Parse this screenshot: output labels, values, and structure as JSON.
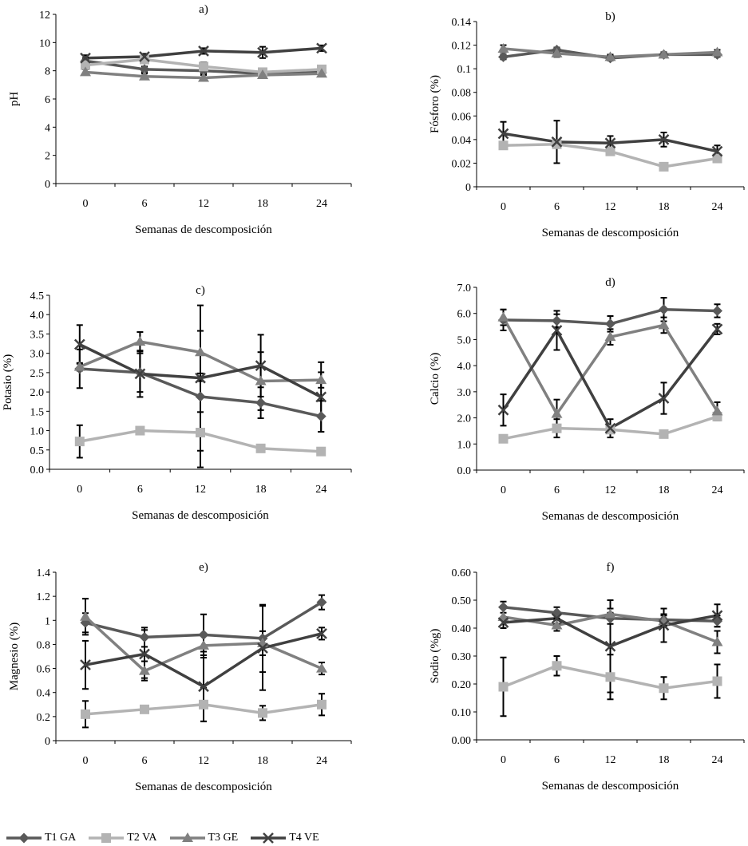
{
  "colors": {
    "T1": "#595959",
    "T2": "#b3b3b3",
    "T3": "#808080",
    "T4": "#404040",
    "axis": "#000000",
    "errorbar": "#000000"
  },
  "legend": [
    {
      "key": "T1",
      "label": "T1 GA",
      "marker": "diamond"
    },
    {
      "key": "T2",
      "label": "T2 VA",
      "marker": "square"
    },
    {
      "key": "T3",
      "label": "T3 GE",
      "marker": "triangle"
    },
    {
      "key": "T4",
      "label": "T4 VE",
      "marker": "x"
    }
  ],
  "chart_data": [
    {
      "id": "a",
      "type": "line",
      "title": "a)",
      "xlabel": "Semanas de descomposición",
      "ylabel": "pH",
      "categories": [
        "0",
        "6",
        "12",
        "18",
        "24"
      ],
      "ylim": [
        0,
        12
      ],
      "yticks": [
        "0",
        "2",
        "4",
        "6",
        "8",
        "10",
        "12"
      ],
      "series": [
        {
          "key": "T1",
          "name": "T1 GA",
          "values": [
            8.7,
            8.1,
            8.0,
            7.8,
            7.9
          ],
          "errors": [
            0.2,
            0.2,
            0.2,
            0.2,
            0.2
          ]
        },
        {
          "key": "T2",
          "name": "T2 VA",
          "values": [
            8.4,
            8.8,
            8.3,
            7.9,
            8.1
          ],
          "errors": [
            0.2,
            0.2,
            0.3,
            0.2,
            0.2
          ]
        },
        {
          "key": "T3",
          "name": "T3 GE",
          "values": [
            7.9,
            7.6,
            7.5,
            7.7,
            7.8
          ],
          "errors": [
            0.2,
            0.2,
            0.2,
            0.2,
            0.2
          ]
        },
        {
          "key": "T4",
          "name": "T4 VE",
          "values": [
            8.9,
            9.0,
            9.4,
            9.3,
            9.6
          ],
          "errors": [
            0.2,
            0.2,
            0.2,
            0.4,
            0.2
          ]
        }
      ]
    },
    {
      "id": "b",
      "type": "line",
      "title": "b)",
      "xlabel": "Semanas de descomposición",
      "ylabel": "Fósforo (%)",
      "categories": [
        "0",
        "6",
        "12",
        "18",
        "24"
      ],
      "ylim": [
        0,
        0.14
      ],
      "yticks": [
        "0",
        "0.02",
        "0.04",
        "0.06",
        "0.08",
        "0.1",
        "0.12",
        "0.14"
      ],
      "series": [
        {
          "key": "T1",
          "name": "T1 GA",
          "values": [
            0.11,
            0.116,
            0.109,
            0.112,
            0.112
          ],
          "errors": [
            0.002,
            0.002,
            0.002,
            0.002,
            0.002
          ]
        },
        {
          "key": "T2",
          "name": "T2 VA",
          "values": [
            0.035,
            0.036,
            0.03,
            0.017,
            0.024
          ],
          "errors": [
            0.002,
            0.002,
            0.003,
            0.002,
            0.002
          ]
        },
        {
          "key": "T3",
          "name": "T3 GE",
          "values": [
            0.117,
            0.113,
            0.11,
            0.112,
            0.114
          ],
          "errors": [
            0.003,
            0.003,
            0.002,
            0.002,
            0.002
          ]
        },
        {
          "key": "T4",
          "name": "T4 VE",
          "values": [
            0.045,
            0.038,
            0.037,
            0.04,
            0.03
          ],
          "errors": [
            0.01,
            0.018,
            0.006,
            0.006,
            0.005
          ]
        }
      ]
    },
    {
      "id": "c",
      "type": "line",
      "title": "c)",
      "xlabel": "Semanas de descomposición",
      "ylabel": "Potasio (%)",
      "categories": [
        "0",
        "6",
        "12",
        "18",
        "24"
      ],
      "ylim": [
        0,
        4.5
      ],
      "yticks": [
        "0.0",
        "0.5",
        "1.0",
        "1.5",
        "2.0",
        "2.5",
        "3.0",
        "3.5",
        "4.0",
        "4.5"
      ],
      "series": [
        {
          "key": "T1",
          "name": "T1 GA",
          "values": [
            2.6,
            2.5,
            1.88,
            1.72,
            1.37
          ],
          "errors": [
            0.5,
            0.5,
            0.4,
            0.4,
            0.4
          ]
        },
        {
          "key": "T2",
          "name": "T2 VA",
          "values": [
            0.72,
            1.0,
            0.95,
            0.54,
            0.46
          ],
          "errors": [
            0.42,
            0.05,
            0.9,
            0.05,
            0.05
          ]
        },
        {
          "key": "T3",
          "name": "T3 GE",
          "values": [
            2.65,
            3.3,
            3.03,
            2.28,
            2.31
          ],
          "errors": [
            0.1,
            0.25,
            0.55,
            0.75,
            0.2
          ]
        },
        {
          "key": "T4",
          "name": "T4 VE",
          "values": [
            3.23,
            2.47,
            2.36,
            2.68,
            1.87
          ],
          "errors": [
            0.5,
            0.6,
            1.88,
            0.8,
            0.9
          ]
        }
      ]
    },
    {
      "id": "d",
      "type": "line",
      "title": "d)",
      "xlabel": "Semanas de descomposición",
      "ylabel": "Calcio (%)",
      "categories": [
        "0",
        "6",
        "12",
        "18",
        "24"
      ],
      "ylim": [
        0,
        7
      ],
      "yticks": [
        "0.0",
        "1.0",
        "2.0",
        "3.0",
        "4.0",
        "5.0",
        "6.0",
        "7.0"
      ],
      "series": [
        {
          "key": "T1",
          "name": "T1 GA",
          "values": [
            5.75,
            5.72,
            5.6,
            6.15,
            6.1
          ],
          "errors": [
            0.4,
            0.25,
            0.3,
            0.45,
            0.25
          ]
        },
        {
          "key": "T2",
          "name": "T2 VA",
          "values": [
            1.2,
            1.6,
            1.55,
            1.38,
            2.05
          ],
          "errors": [
            0.1,
            0.35,
            0.1,
            0.1,
            0.15
          ]
        },
        {
          "key": "T3",
          "name": "T3 GE",
          "values": [
            5.85,
            2.15,
            5.1,
            5.55,
            2.25
          ],
          "errors": [
            0.3,
            0.55,
            0.3,
            0.3,
            0.35
          ]
        },
        {
          "key": "T4",
          "name": "T4 VE",
          "values": [
            2.3,
            5.35,
            1.6,
            2.75,
            5.4
          ],
          "errors": [
            0.6,
            0.75,
            0.35,
            0.6,
            0.2
          ]
        }
      ]
    },
    {
      "id": "e",
      "type": "line",
      "title": "e)",
      "xlabel": "Semanas de descomposición",
      "ylabel": "Magnesio (%)",
      "categories": [
        "0",
        "6",
        "12",
        "18",
        "24"
      ],
      "ylim": [
        0,
        1.4
      ],
      "yticks": [
        "0",
        "0.2",
        "0.4",
        "0.6",
        "0.8",
        "1",
        "1.2",
        "1.4"
      ],
      "series": [
        {
          "key": "T1",
          "name": "T1 GA",
          "values": [
            0.98,
            0.86,
            0.88,
            0.85,
            1.15
          ],
          "errors": [
            0.08,
            0.08,
            0.17,
            0.28,
            0.06
          ]
        },
        {
          "key": "T2",
          "name": "T2 VA",
          "values": [
            0.22,
            0.26,
            0.3,
            0.23,
            0.3
          ],
          "errors": [
            0.11,
            0.02,
            0.14,
            0.06,
            0.09
          ]
        },
        {
          "key": "T3",
          "name": "T3 GE",
          "values": [
            1.03,
            0.58,
            0.79,
            0.81,
            0.6
          ],
          "errors": [
            0.15,
            0.08,
            0.1,
            0.1,
            0.05
          ]
        },
        {
          "key": "T4",
          "name": "T4 VE",
          "values": [
            0.63,
            0.72,
            0.45,
            0.77,
            0.89
          ],
          "errors": [
            0.2,
            0.2,
            0.29,
            0.35,
            0.05
          ]
        }
      ]
    },
    {
      "id": "f",
      "type": "line",
      "title": "f)",
      "xlabel": "Semanas de descomposición",
      "ylabel": "Sodio (%g)",
      "categories": [
        "0",
        "6",
        "12",
        "18",
        "24"
      ],
      "ylim": [
        0,
        0.6
      ],
      "yticks": [
        "0.00",
        "0.10",
        "0.20",
        "0.30",
        "0.40",
        "0.50",
        "0.60"
      ],
      "series": [
        {
          "key": "T1",
          "name": "T1 GA",
          "values": [
            0.475,
            0.455,
            0.435,
            0.43,
            0.425
          ],
          "errors": [
            0.02,
            0.02,
            0.02,
            0.02,
            0.02
          ]
        },
        {
          "key": "T2",
          "name": "T2 VA",
          "values": [
            0.19,
            0.265,
            0.225,
            0.185,
            0.21
          ],
          "errors": [
            0.105,
            0.035,
            0.08,
            0.04,
            0.06
          ]
        },
        {
          "key": "T3",
          "name": "T3 GE",
          "values": [
            0.44,
            0.41,
            0.45,
            0.425,
            0.35
          ],
          "errors": [
            0.04,
            0.02,
            0.02,
            0.02,
            0.04
          ]
        },
        {
          "key": "T4",
          "name": "T4 VE",
          "values": [
            0.42,
            0.435,
            0.335,
            0.41,
            0.445
          ],
          "errors": [
            0.02,
            0.02,
            0.165,
            0.06,
            0.04
          ]
        }
      ]
    }
  ]
}
